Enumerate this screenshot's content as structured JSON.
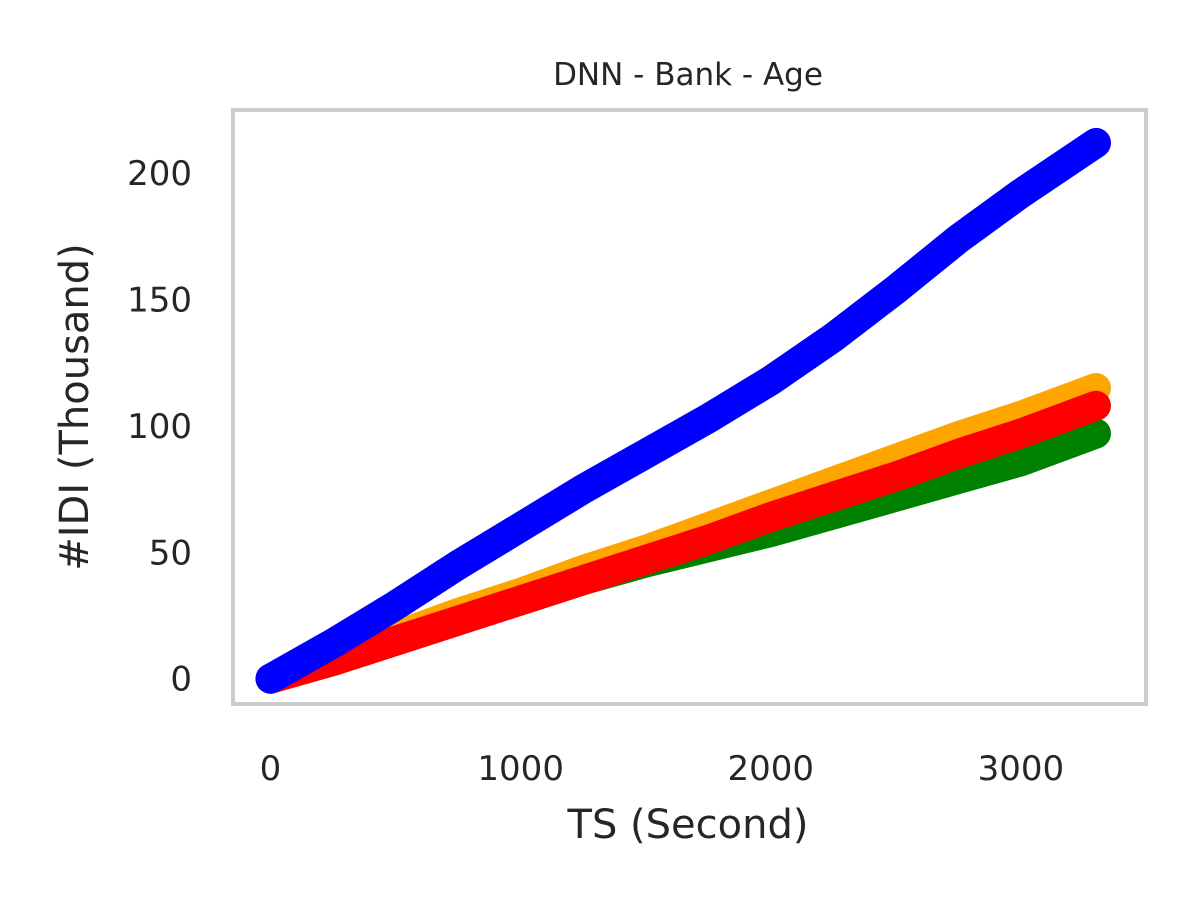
{
  "chart_data": {
    "type": "line",
    "title": "DNN - Bank - Age",
    "xlabel": "TS (Second)",
    "ylabel": "#IDI (Thousand)",
    "xlim": [
      -150,
      3500
    ],
    "ylim": [
      -10,
      225
    ],
    "x_ticks": [
      0,
      1000,
      2000,
      3000
    ],
    "y_ticks": [
      0,
      50,
      100,
      150,
      200
    ],
    "x_tick_labels": [
      "0",
      "1000",
      "2000",
      "3000"
    ],
    "y_tick_labels": [
      "0",
      "50",
      "100",
      "150",
      "200"
    ],
    "grid": false,
    "legend": "none",
    "frame_color": "#cccccc",
    "series": [
      {
        "color": "#008000",
        "x": [
          0,
          250,
          500,
          750,
          1000,
          1250,
          1500,
          1750,
          2000,
          2250,
          2500,
          2750,
          3000,
          3300
        ],
        "y": [
          0,
          8,
          16,
          24,
          31,
          39,
          46,
          52,
          58,
          65,
          72,
          79,
          86,
          97
        ]
      },
      {
        "color": "#ffa500",
        "x": [
          0,
          250,
          500,
          750,
          1000,
          1250,
          1500,
          1750,
          2000,
          2250,
          2500,
          2750,
          3000,
          3300
        ],
        "y": [
          0,
          8,
          17,
          26,
          34,
          43,
          51,
          60,
          69,
          78,
          87,
          96,
          104,
          115
        ]
      },
      {
        "color": "#ff0000",
        "x": [
          0,
          250,
          500,
          750,
          1000,
          1250,
          1500,
          1750,
          2000,
          2250,
          2500,
          2750,
          3000,
          3300
        ],
        "y": [
          0,
          7,
          15,
          23,
          31,
          39,
          47,
          55,
          64,
          72,
          80,
          89,
          97,
          108
        ]
      },
      {
        "color": "#0000ff",
        "x": [
          0,
          250,
          500,
          750,
          1000,
          1250,
          1500,
          1750,
          2000,
          2250,
          2500,
          2750,
          3000,
          3300
        ],
        "y": [
          0,
          14,
          29,
          45,
          60,
          75,
          89,
          103,
          118,
          135,
          154,
          174,
          192,
          212
        ]
      }
    ]
  }
}
